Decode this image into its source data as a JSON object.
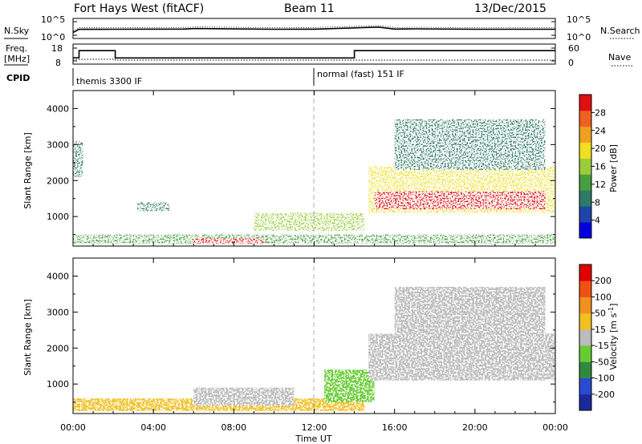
{
  "header": {
    "title": "Fort Hays West (fitACF)",
    "beam": "Beam 11",
    "date": "13/Dec/2015"
  },
  "panels": {
    "nsky": {
      "label": "N.Sky",
      "left_ticks": [
        "10^5",
        "10^0"
      ],
      "right_ticks": [
        "10^5",
        "10^0"
      ],
      "right_label": "N.Search"
    },
    "freq": {
      "label_top": "Freq.",
      "label_unit": "[MHz]",
      "left_ticks": [
        "18",
        "8"
      ],
      "right_ticks": [
        "60",
        "0"
      ],
      "right_label": "Nave"
    },
    "cpid": {
      "label": "CPID",
      "modes": [
        "themis 3300 IF",
        "normal (fast) 151 IF"
      ]
    },
    "power": {
      "ylabel": "Slant Range [km]",
      "yticks": [
        "4000",
        "3000",
        "2000",
        "1000"
      ],
      "colorbar_label": "Power [dB]",
      "colorbar_ticks": [
        "28",
        "24",
        "20",
        "16",
        "12",
        "8",
        "4"
      ],
      "colors": [
        "#0000e0",
        "#1e44a8",
        "#2f7a66",
        "#46a040",
        "#9acd3c",
        "#f0e020",
        "#f0a020",
        "#f06020",
        "#e01010"
      ]
    },
    "velocity": {
      "ylabel": "Slant Range [km]",
      "yticks": [
        "4000",
        "3000",
        "2000",
        "1000"
      ],
      "colorbar_label": "Velocity [m s",
      "colorbar_sup": "-1",
      "colorbar_label_end": "]",
      "colorbar_ticks": [
        "200",
        "100",
        "50",
        "15",
        "-15",
        "-50",
        "-100",
        "-200"
      ],
      "colors": [
        "#1a2a9c",
        "#2a4ad0",
        "#2f8a40",
        "#66cc33",
        "#bbbbbb",
        "#f0c020",
        "#f09020",
        "#f05010",
        "#e00000"
      ]
    }
  },
  "xaxis": {
    "label": "Time UT",
    "ticks": [
      "00:00",
      "04:00",
      "08:00",
      "12:00",
      "16:00",
      "20:00",
      "00:00"
    ]
  },
  "chart_data": [
    {
      "type": "line",
      "name": "N.Sky",
      "scale": "log",
      "x_hours": [
        0,
        0.3,
        2,
        5.5,
        6.1,
        10,
        12,
        15.2,
        16,
        17,
        20,
        24
      ],
      "y": [
        10,
        150,
        160,
        180,
        300,
        160,
        170,
        1000,
        180,
        220,
        160,
        160
      ]
    },
    {
      "type": "line",
      "name": "Frequency / Nave",
      "x_hours": [
        0,
        0.3,
        2.1,
        14,
        24
      ],
      "freq_mhz": [
        10.5,
        16,
        10.3,
        16,
        16
      ],
      "nave": [
        12,
        12,
        9,
        9,
        9
      ]
    },
    {
      "type": "heatmap",
      "title": "Power [dB]",
      "xlabel": "Time UT",
      "ylabel": "Slant Range [km]",
      "xlim_hours": [
        0,
        24
      ],
      "ylim_km": [
        180,
        4500
      ],
      "clim_db": [
        0,
        30
      ],
      "regions": [
        {
          "t0": 0.0,
          "t1": 24.0,
          "r0": 250,
          "r1": 500,
          "value_db": 10
        },
        {
          "t0": 6.0,
          "t1": 9.5,
          "r0": 250,
          "r1": 400,
          "value_db": 28
        },
        {
          "t0": 0.0,
          "t1": 0.5,
          "r0": 2100,
          "r1": 3100,
          "value_db": 8
        },
        {
          "t0": 3.2,
          "t1": 4.8,
          "r0": 1150,
          "r1": 1400,
          "value_db": 8
        },
        {
          "t0": 9.0,
          "t1": 14.5,
          "r0": 600,
          "r1": 1100,
          "value_db": 14
        },
        {
          "t0": 14.7,
          "t1": 24.0,
          "r0": 1100,
          "r1": 2400,
          "value_db": 18
        },
        {
          "t0": 15.0,
          "t1": 23.5,
          "r0": 1200,
          "r1": 1700,
          "value_db": 28
        },
        {
          "t0": 16.0,
          "t1": 23.5,
          "r0": 2300,
          "r1": 3700,
          "value_db": 8
        }
      ]
    },
    {
      "type": "heatmap",
      "title": "Velocity [m s-1]",
      "xlabel": "Time UT",
      "ylabel": "Slant Range [km]",
      "xlim_hours": [
        0,
        24
      ],
      "ylim_km": [
        180,
        4500
      ],
      "clim_ms": [
        -200,
        200
      ],
      "regions": [
        {
          "t0": 0.0,
          "t1": 14.5,
          "r0": 250,
          "r1": 600,
          "value_ms": -30
        },
        {
          "t0": 6.0,
          "t1": 11.0,
          "r0": 400,
          "r1": 900,
          "value_ms": 0
        },
        {
          "t0": 12.5,
          "t1": 15.0,
          "r0": 500,
          "r1": 1400,
          "value_ms": 40
        },
        {
          "t0": 14.7,
          "t1": 24.0,
          "r0": 1100,
          "r1": 2400,
          "value_ms": 0
        },
        {
          "t0": 16.0,
          "t1": 23.5,
          "r0": 2300,
          "r1": 3700,
          "value_ms": 0
        }
      ]
    }
  ]
}
